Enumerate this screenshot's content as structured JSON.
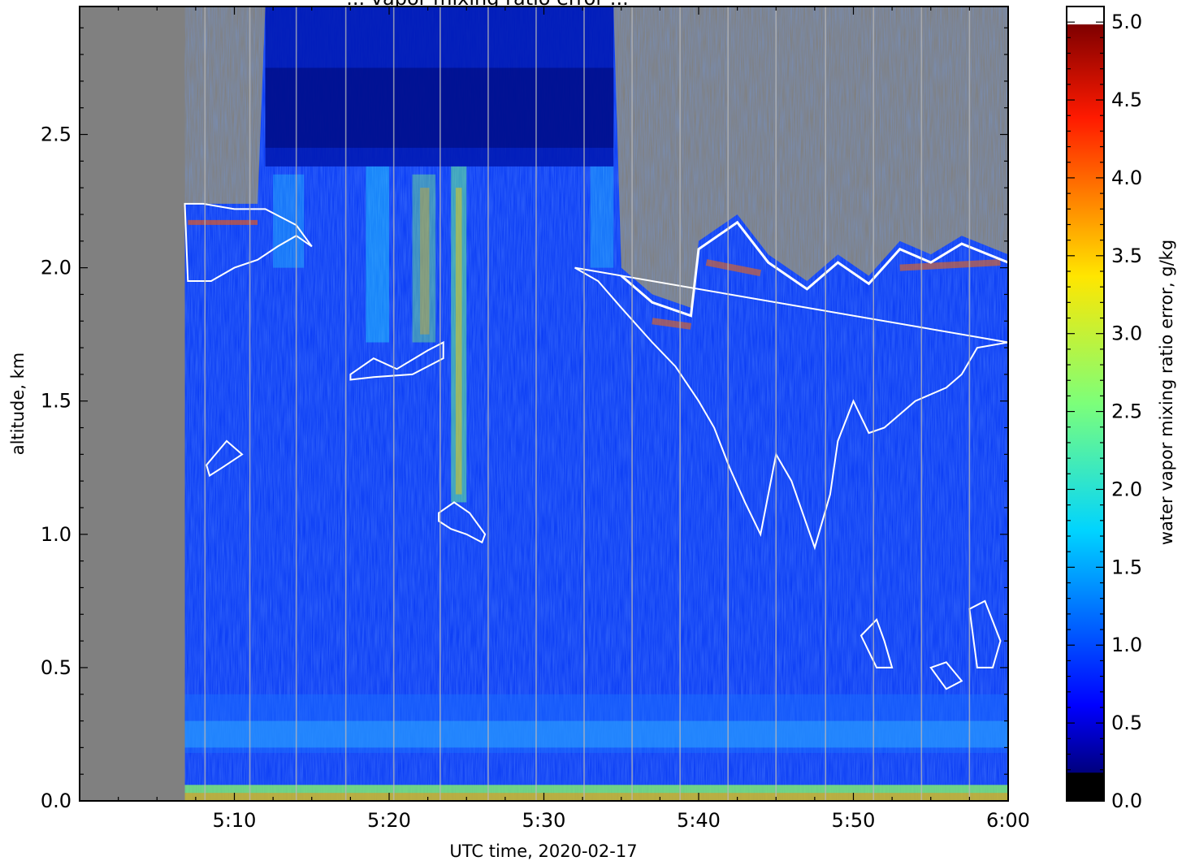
{
  "chart_data": {
    "type": "heatmap",
    "title": "... vapor mixing ratio error ...",
    "xlabel": "UTC time,  2020-02-17",
    "ylabel": "altitude, km",
    "x_tick_labels": [
      "5:10",
      "5:20",
      "5:30",
      "5:40",
      "5:50",
      "6:00"
    ],
    "x_ticks_minutes": [
      10,
      20,
      30,
      40,
      50,
      60
    ],
    "xlim_minutes": [
      0,
      60
    ],
    "ylim": [
      0,
      2.98
    ],
    "y_ticks": [
      0.0,
      0.5,
      1.0,
      1.5,
      2.0,
      2.5
    ],
    "y_tick_labels": [
      "0.0",
      "0.5",
      "1.0",
      "1.5",
      "2.0",
      "2.5"
    ],
    "colorbar": {
      "label": "water vapor mixing ratio error, g/kg",
      "range": [
        0,
        5.1
      ],
      "ticks": [
        0.0,
        0.5,
        1.0,
        1.5,
        2.0,
        2.5,
        3.0,
        3.5,
        4.0,
        4.5,
        5.0
      ],
      "tick_labels": [
        "0.0",
        "0.5",
        "1.0",
        "1.5",
        "2.0",
        "2.5",
        "3.0",
        "3.5",
        "4.0",
        "4.5",
        "5.0"
      ],
      "colormap": "jet"
    },
    "no_data_color": "#808080",
    "data_start_minutes": 6.8,
    "cloud_contour_color": "#ffffff",
    "data_top_km": [
      [
        6.8,
        2.24
      ],
      [
        11.5,
        2.24
      ],
      [
        12.0,
        2.98
      ],
      [
        34.5,
        2.98
      ],
      [
        35.0,
        2.0
      ],
      [
        37.0,
        1.9
      ],
      [
        39.5,
        1.85
      ],
      [
        40.0,
        2.1
      ],
      [
        42.5,
        2.2
      ],
      [
        44.5,
        2.05
      ],
      [
        47.0,
        1.95
      ],
      [
        49.0,
        2.05
      ],
      [
        51.0,
        1.97
      ],
      [
        53.0,
        2.1
      ],
      [
        55.0,
        2.05
      ],
      [
        57.0,
        2.12
      ],
      [
        60.0,
        2.05
      ]
    ],
    "surface_error_band_km": [
      0.0,
      0.06
    ],
    "elevated_error_band_km": [
      0.18,
      0.4
    ]
  }
}
